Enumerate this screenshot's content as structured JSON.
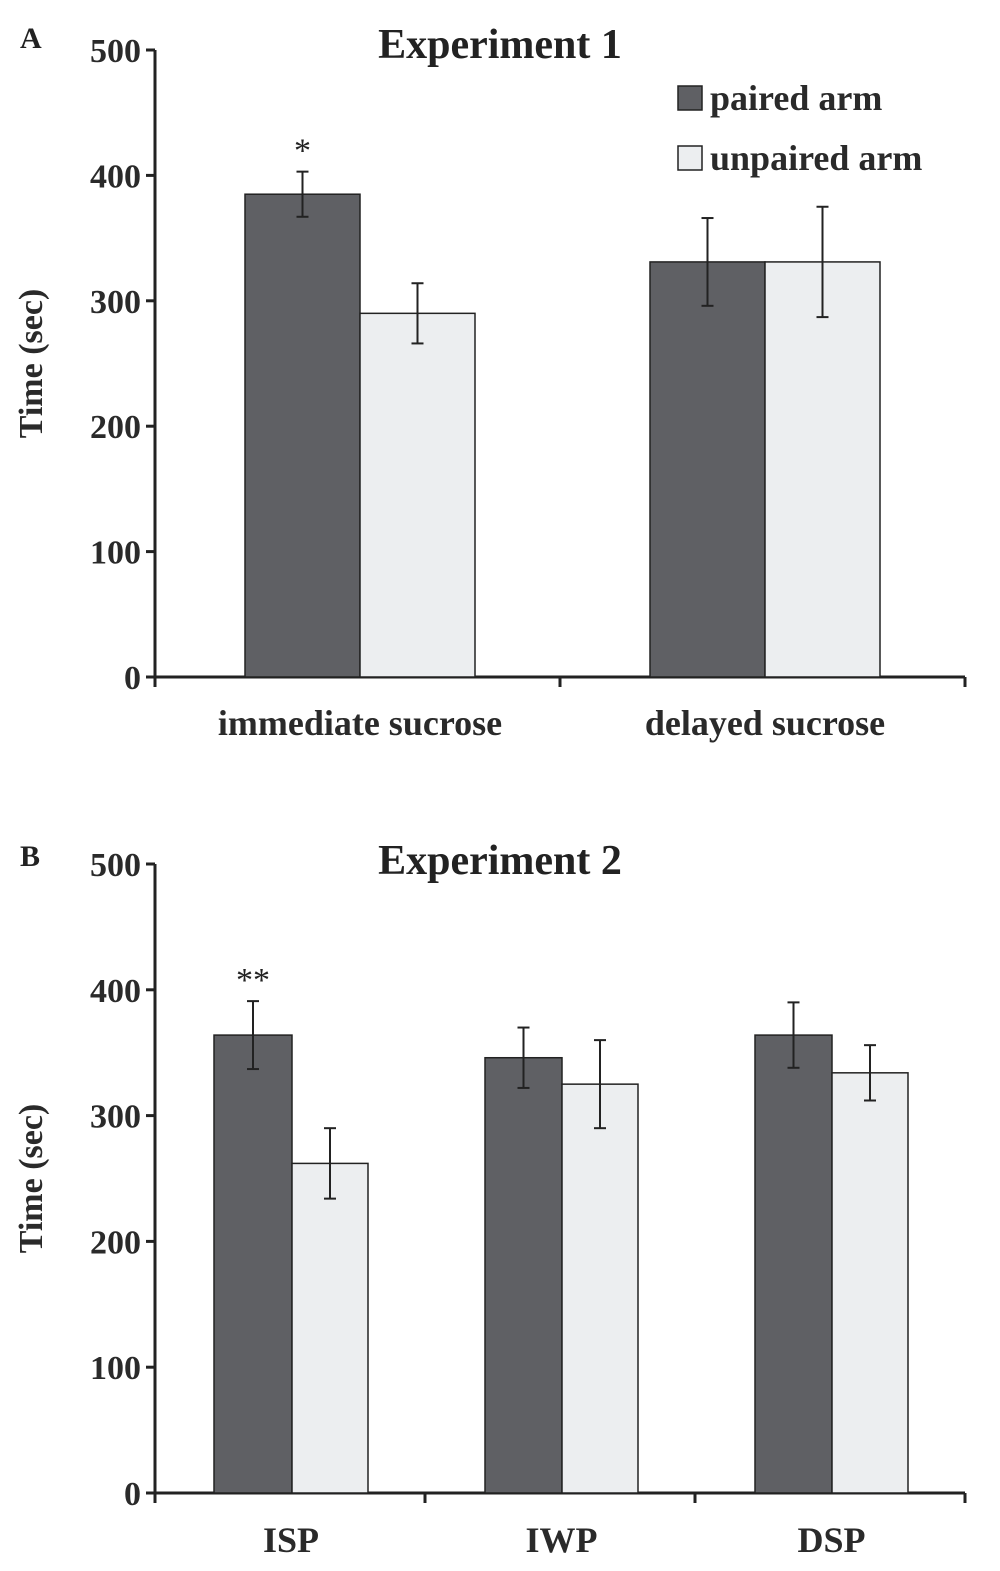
{
  "chart_data": [
    {
      "type": "bar",
      "panel_label": "A",
      "title": "Experiment 1",
      "ylabel": "Time (sec)",
      "xlabel": "",
      "ylim": [
        0,
        500
      ],
      "yticks": [
        "0",
        "100",
        "200",
        "300",
        "400",
        "500"
      ],
      "categories": [
        "immediate sucrose",
        "delayed sucrose"
      ],
      "series": [
        {
          "name": "paired arm",
          "color": "#5f6064",
          "values": [
            385,
            331
          ],
          "errors": [
            18,
            35
          ]
        },
        {
          "name": "unpaired arm",
          "color": "#eceef0",
          "values": [
            290,
            331
          ],
          "errors": [
            24,
            44
          ]
        }
      ],
      "annotations": [
        {
          "category": 0,
          "series": 0,
          "text": "*"
        }
      ],
      "legend_position": "top-right",
      "grid": false
    },
    {
      "type": "bar",
      "panel_label": "B",
      "title": "Experiment 2",
      "ylabel": "Time (sec)",
      "xlabel": "",
      "ylim": [
        0,
        500
      ],
      "yticks": [
        "0",
        "100",
        "200",
        "300",
        "400",
        "500"
      ],
      "categories": [
        "ISP",
        "IWP",
        "DSP"
      ],
      "series": [
        {
          "name": "paired arm",
          "color": "#5f6064",
          "values": [
            364,
            346,
            364
          ],
          "errors": [
            27,
            24,
            26
          ]
        },
        {
          "name": "unpaired arm",
          "color": "#eceef0",
          "values": [
            262,
            325,
            334
          ],
          "errors": [
            28,
            35,
            22
          ]
        }
      ],
      "annotations": [
        {
          "category": 0,
          "series": 0,
          "text": "**"
        }
      ],
      "legend_position": "none",
      "grid": false
    }
  ]
}
